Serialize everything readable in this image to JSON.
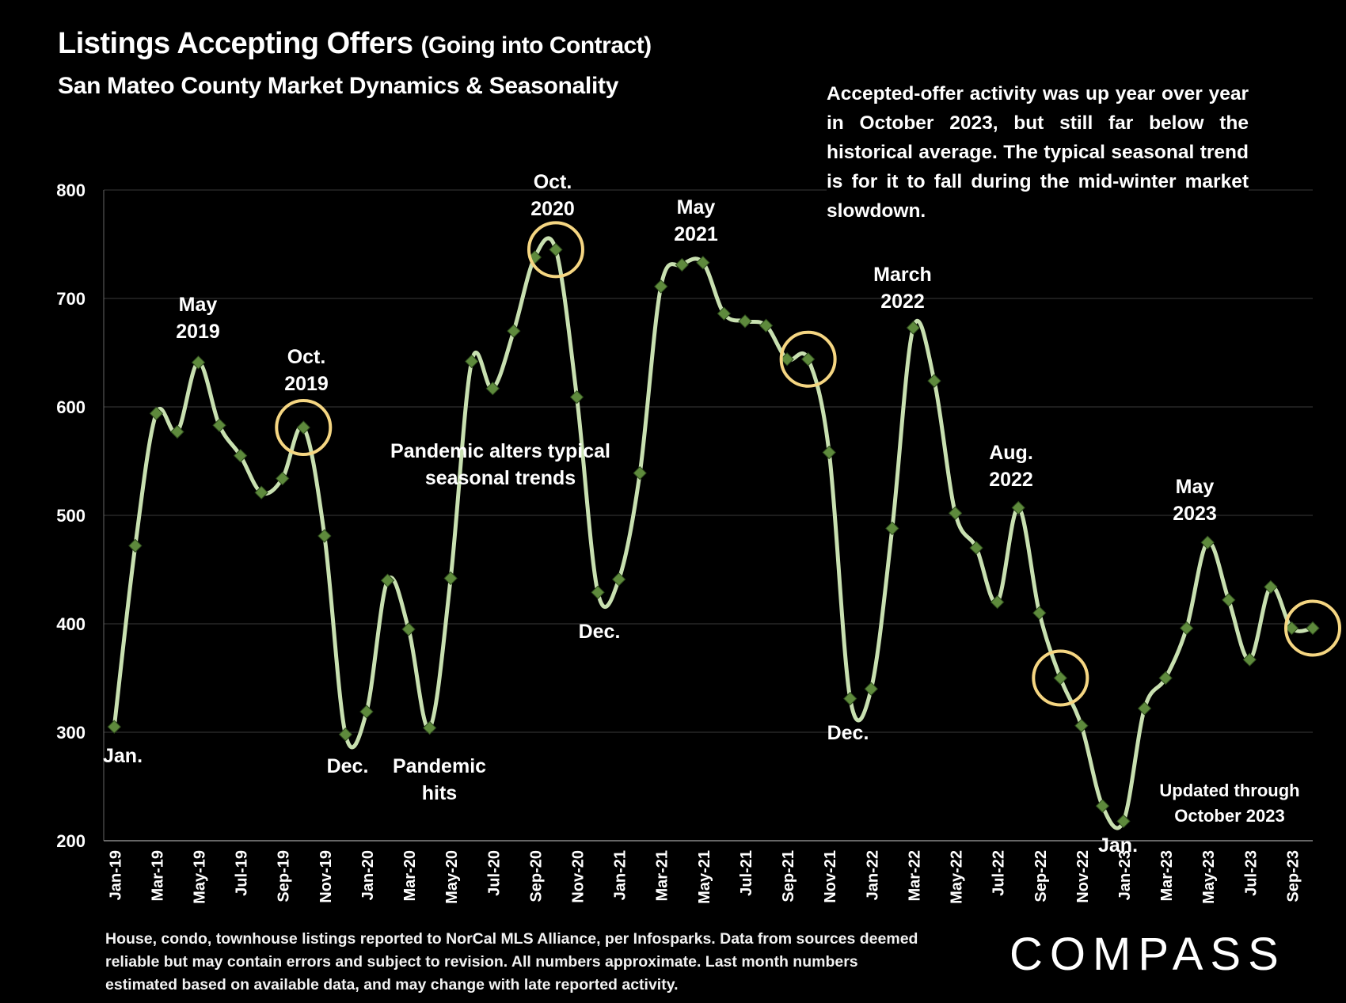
{
  "header": {
    "title": "Listings Accepting Offers",
    "title_suffix": "(Going into Contract)",
    "subtitle": "San Mateo County Market Dynamics & Seasonality"
  },
  "note": "Accepted-offer activity was up year over year in October 2023, but still far below the historical average. The typical seasonal trend is for it to fall during the mid-winter market slowdown.",
  "footnote": "House, condo, townhouse listings reported to NorCal MLS Alliance, per Infosparks. Data from sources deemed reliable but may contain errors and subject to revision. All numbers approximate. Last month numbers estimated based on available data, and may change with late reported activity.",
  "logo": "COMPASS",
  "colors": {
    "line": "#c8e0b0",
    "marker": "#5e8a3c",
    "circle": "#f5d682",
    "grid": "#3a3a3a"
  },
  "chart_data": {
    "type": "line",
    "title": "Listings Accepting Offers (Going into Contract)",
    "xlabel": "",
    "ylabel": "",
    "ylim": [
      200,
      800
    ],
    "yticks": [
      200,
      300,
      400,
      500,
      600,
      700,
      800
    ],
    "x_tick_labels": [
      "Jan-19",
      "Mar-19",
      "May-19",
      "Jul-19",
      "Sep-19",
      "Nov-19",
      "Jan-20",
      "Mar-20",
      "May-20",
      "Jul-20",
      "Sep-20",
      "Nov-20",
      "Jan-21",
      "Mar-21",
      "May-21",
      "Jul-21",
      "Sep-21",
      "Nov-21",
      "Jan-22",
      "Mar-22",
      "May-22",
      "Jul-22",
      "Sep-22",
      "Nov-22",
      "Jan-23",
      "Mar-23",
      "May-23",
      "Jul-23",
      "Sep-23"
    ],
    "x": [
      "Jan-19",
      "Feb-19",
      "Mar-19",
      "Apr-19",
      "May-19",
      "Jun-19",
      "Jul-19",
      "Aug-19",
      "Sep-19",
      "Oct-19",
      "Nov-19",
      "Dec-19",
      "Jan-20",
      "Feb-20",
      "Mar-20",
      "Apr-20",
      "May-20",
      "Jun-20",
      "Jul-20",
      "Aug-20",
      "Sep-20",
      "Oct-20",
      "Nov-20",
      "Dec-20",
      "Jan-21",
      "Feb-21",
      "Mar-21",
      "Apr-21",
      "May-21",
      "Jun-21",
      "Jul-21",
      "Aug-21",
      "Sep-21",
      "Oct-21",
      "Nov-21",
      "Dec-21",
      "Jan-22",
      "Feb-22",
      "Mar-22",
      "Apr-22",
      "May-22",
      "Jun-22",
      "Jul-22",
      "Aug-22",
      "Sep-22",
      "Oct-22",
      "Nov-22",
      "Dec-22",
      "Jan-23",
      "Feb-23",
      "Mar-23",
      "Apr-23",
      "May-23",
      "Jun-23",
      "Jul-23",
      "Aug-23",
      "Sep-23",
      "Oct-23"
    ],
    "values": [
      305,
      472,
      594,
      577,
      641,
      583,
      555,
      521,
      534,
      581,
      481,
      298,
      319,
      440,
      395,
      304,
      442,
      642,
      617,
      670,
      738,
      745,
      609,
      429,
      441,
      539,
      711,
      731,
      733,
      686,
      679,
      675,
      644,
      644,
      558,
      331,
      340,
      488,
      673,
      624,
      502,
      470,
      420,
      507,
      410,
      350,
      306,
      232,
      218,
      322,
      350,
      396,
      475,
      422,
      367,
      434,
      396,
      396
    ],
    "highlighted": [
      {
        "x": "Oct-19",
        "value": 581
      },
      {
        "x": "Oct-20",
        "value": 745
      },
      {
        "x": "Oct-21",
        "value": 644
      },
      {
        "x": "Oct-22",
        "value": 350
      },
      {
        "x": "Oct-23",
        "value": 396
      }
    ],
    "annotations": [
      {
        "label": "Jan.",
        "x": "Jan-19"
      },
      {
        "label": "May\n2019",
        "x": "May-19"
      },
      {
        "label": "Oct.\n2019",
        "x": "Oct-19"
      },
      {
        "label": "Dec.",
        "x": "Dec-19"
      },
      {
        "label": "Pandemic\nhits",
        "x": "Apr-20"
      },
      {
        "label": "Pandemic alters typical\nseasonal trends",
        "x": "Jul-20"
      },
      {
        "label": "Oct.\n2020",
        "x": "Oct-20"
      },
      {
        "label": "Dec.",
        "x": "Dec-20"
      },
      {
        "label": "May\n2021",
        "x": "May-21"
      },
      {
        "label": "Dec.",
        "x": "Dec-21"
      },
      {
        "label": "March\n2022",
        "x": "Mar-22"
      },
      {
        "label": "Aug.\n2022",
        "x": "Aug-22"
      },
      {
        "label": "Jan.",
        "x": "Jan-23"
      },
      {
        "label": "May\n2023",
        "x": "May-23"
      },
      {
        "label": "Updated through\nOctober 2023",
        "x": "Sep-23"
      }
    ]
  }
}
